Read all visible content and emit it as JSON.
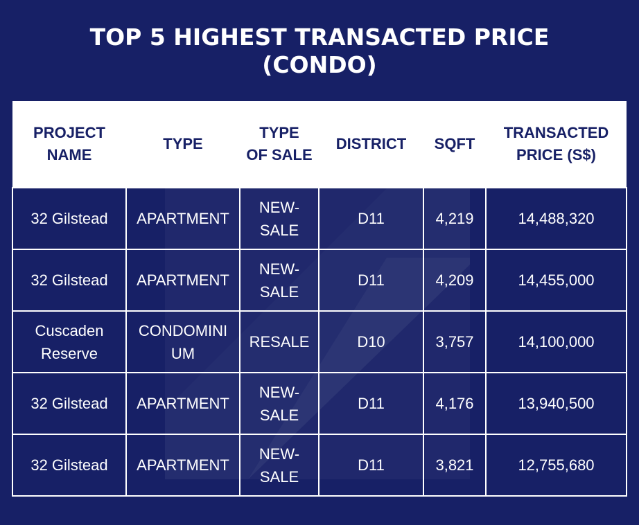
{
  "title": {
    "line1": "TOP 5 HIGHEST TRANSACTED PRICE",
    "line2": "(CONDO)"
  },
  "table": {
    "headers": [
      {
        "line1": "PROJECT",
        "line2": "NAME"
      },
      {
        "line1": "TYPE",
        "line2": ""
      },
      {
        "line1": "TYPE",
        "line2": "OF SALE"
      },
      {
        "line1": "DISTRICT",
        "line2": ""
      },
      {
        "line1": "SQFT",
        "line2": ""
      },
      {
        "line1": "TRANSACTED",
        "line2": "PRICE (S$)"
      }
    ],
    "rows": [
      {
        "project": "32 Gilstead",
        "type": "APARTMENT",
        "sale_line1": "NEW-",
        "sale_line2": "SALE",
        "district": "D11",
        "sqft": "4,219",
        "price": "14,488,320"
      },
      {
        "project": "32 Gilstead",
        "type": "APARTMENT",
        "sale_line1": "NEW-",
        "sale_line2": "SALE",
        "district": "D11",
        "sqft": "4,209",
        "price": "14,455,000"
      },
      {
        "project_line1": "Cuscaden",
        "project_line2": "Reserve",
        "type_line1": "CONDOMINI",
        "type_line2": "UM",
        "sale_line1": "RESALE",
        "sale_line2": "",
        "district": "D10",
        "sqft": "3,757",
        "price": "14,100,000"
      },
      {
        "project": "32 Gilstead",
        "type": "APARTMENT",
        "sale_line1": "NEW-",
        "sale_line2": "SALE",
        "district": "D11",
        "sqft": "4,176",
        "price": "13,940,500"
      },
      {
        "project": "32 Gilstead",
        "type": "APARTMENT",
        "sale_line1": "NEW-",
        "sale_line2": "SALE",
        "district": "D11",
        "sqft": "3,821",
        "price": "12,755,680"
      }
    ]
  },
  "colors": {
    "background": "#172066",
    "header_background": "#ffffff",
    "header_text": "#172066",
    "cell_text": "#ffffff"
  }
}
